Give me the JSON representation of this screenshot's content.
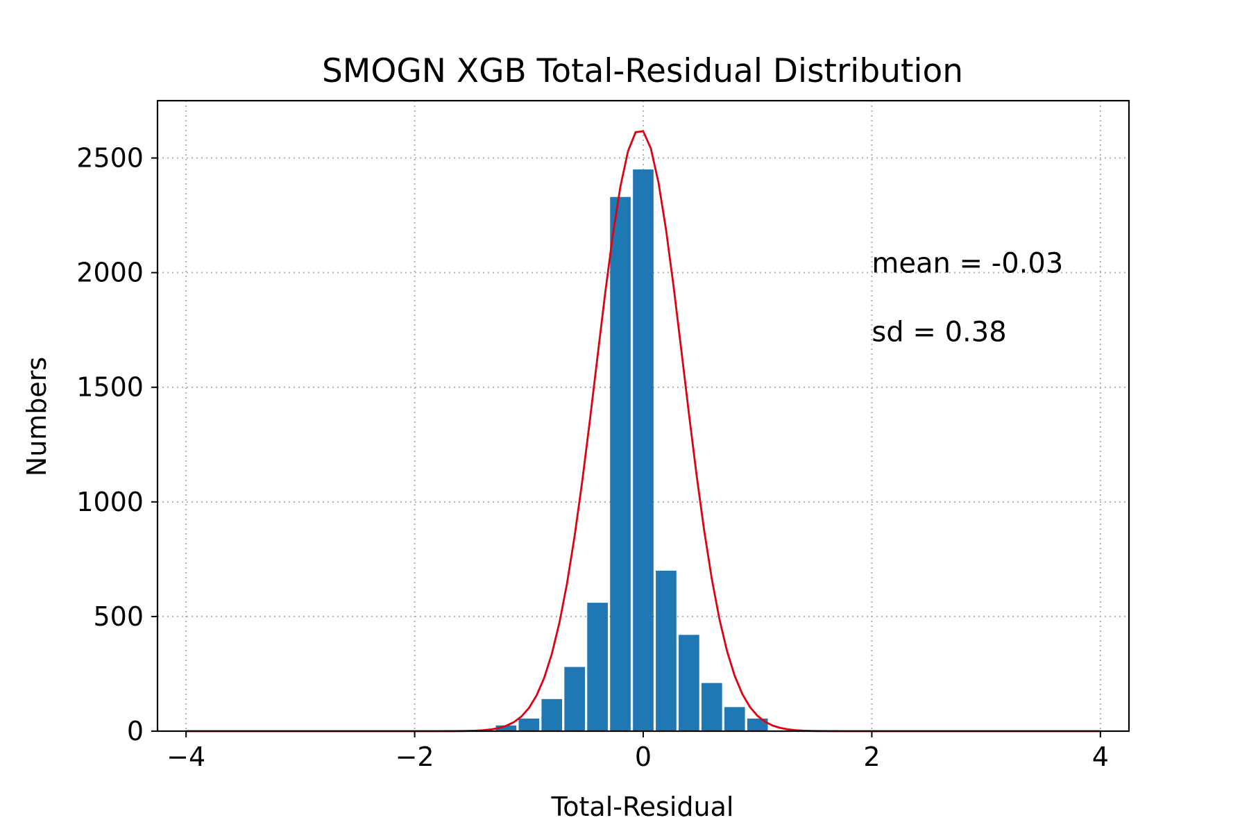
{
  "chart_data": {
    "type": "bar",
    "title": "SMOGN XGB Total-Residual Distribution",
    "xlabel": "Total-Residual",
    "ylabel": "Numbers",
    "xlim": [
      -4.25,
      4.25
    ],
    "ylim": [
      0,
      2750
    ],
    "x_ticks": [
      -4,
      -2,
      0,
      2,
      4
    ],
    "x_tick_labels": [
      "−4",
      "−2",
      "0",
      "2",
      "4"
    ],
    "y_ticks": [
      0,
      500,
      1000,
      1500,
      2000,
      2500
    ],
    "y_tick_labels": [
      "0",
      "500",
      "1000",
      "1500",
      "2000",
      "2500"
    ],
    "grid": true,
    "bin_width": 0.2,
    "bins": [
      {
        "x": -1.2,
        "value": 25
      },
      {
        "x": -1.0,
        "value": 55
      },
      {
        "x": -0.8,
        "value": 140
      },
      {
        "x": -0.6,
        "value": 280
      },
      {
        "x": -0.4,
        "value": 560
      },
      {
        "x": -0.2,
        "value": 2330
      },
      {
        "x": 0.0,
        "value": 2450
      },
      {
        "x": 0.2,
        "value": 700
      },
      {
        "x": 0.4,
        "value": 420
      },
      {
        "x": 0.6,
        "value": 210
      },
      {
        "x": 0.8,
        "value": 105
      },
      {
        "x": 1.0,
        "value": 55
      }
    ],
    "fit_curve": {
      "mean": -0.03,
      "sd": 0.38,
      "peak": 2625,
      "x_range": [
        -4,
        4
      ]
    },
    "annotations": [
      {
        "text": "mean = -0.03",
        "x": 2.0,
        "y": 2000
      },
      {
        "text": "sd = 0.38",
        "x": 2.0,
        "y": 1700
      }
    ],
    "colors": {
      "bar": "#1f77b4",
      "curve": "#e0000f",
      "grid": "#b0b0b0",
      "axes": "#000000"
    }
  }
}
